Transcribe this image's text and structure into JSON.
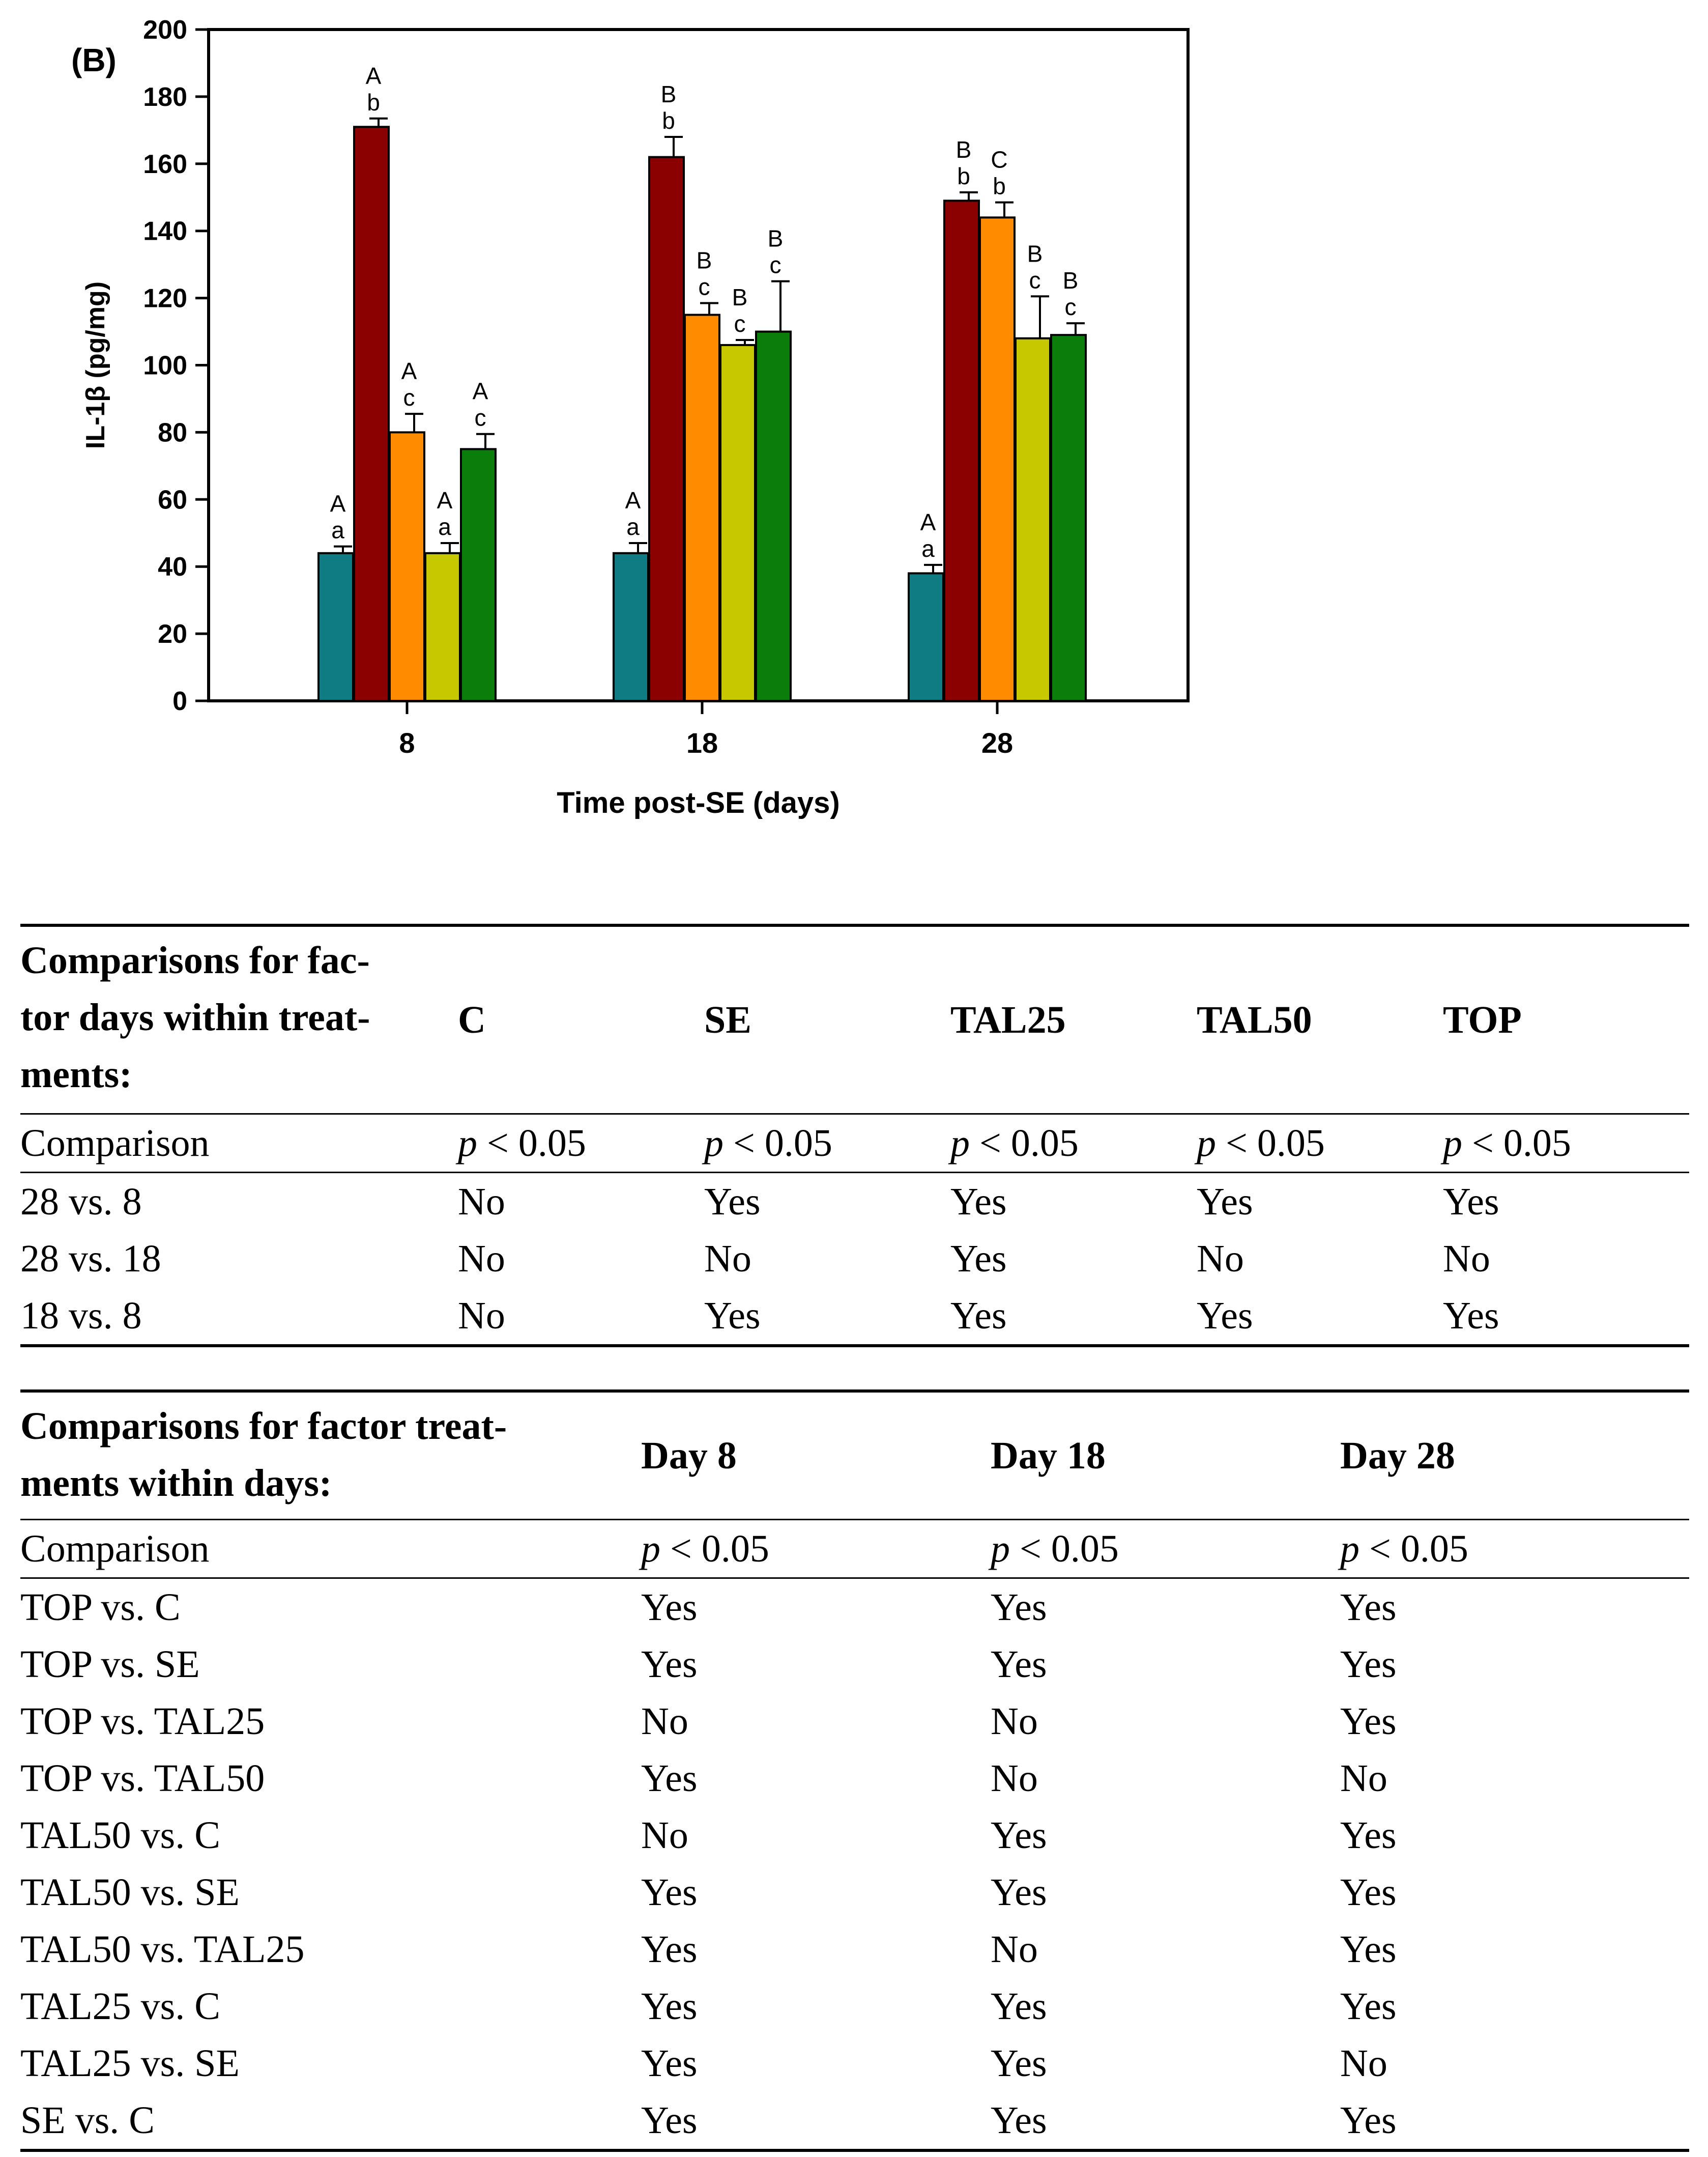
{
  "panel_label": "(B)",
  "chart_data": {
    "type": "bar",
    "ylabel": "IL-1β (pg/mg)",
    "xlabel": "Time post-SE (days)",
    "ylim": [
      0,
      200
    ],
    "yticks": [
      0,
      20,
      40,
      60,
      80,
      100,
      120,
      140,
      160,
      180,
      200
    ],
    "categories": [
      "8",
      "18",
      "28"
    ],
    "series": [
      {
        "color": "#0f7b82",
        "values": [
          44,
          44,
          38
        ],
        "errors": [
          2,
          3,
          2.5
        ],
        "letters_upper": [
          "A",
          "A",
          "A"
        ],
        "letters_lower": [
          "a",
          "a",
          "a"
        ]
      },
      {
        "color": "#8b0000",
        "values": [
          171,
          162,
          149
        ],
        "errors": [
          2.5,
          6,
          2.5
        ],
        "letters_upper": [
          "A",
          "B",
          "B"
        ],
        "letters_lower": [
          "b",
          "b",
          "b"
        ]
      },
      {
        "color": "#ff8c00",
        "values": [
          80,
          115,
          144
        ],
        "errors": [
          5.5,
          3.5,
          4.5
        ],
        "letters_upper": [
          "A",
          "B",
          "C"
        ],
        "letters_lower": [
          "c",
          "c",
          "b"
        ]
      },
      {
        "color": "#c8c800",
        "values": [
          44,
          106,
          108
        ],
        "errors": [
          3,
          1.5,
          12.5
        ],
        "letters_upper": [
          "A",
          "B",
          "B"
        ],
        "letters_lower": [
          "a",
          "c",
          "c"
        ]
      },
      {
        "color": "#0a7d0a",
        "values": [
          75,
          110,
          109
        ],
        "errors": [
          4.5,
          15,
          3.5
        ],
        "letters_upper": [
          "A",
          "B",
          "B"
        ],
        "letters_lower": [
          "c",
          "c",
          "c"
        ]
      }
    ]
  },
  "table_days": {
    "title_lines": [
      "Comparisons for fac-",
      "tor days within treat-",
      "ments:"
    ],
    "columns": [
      "C",
      "SE",
      "TAL25",
      "TAL50",
      "TOP"
    ],
    "subheader": {
      "label": "Comparison",
      "p_symbol": "p",
      "p_rest": " < 0.05"
    },
    "rows": [
      {
        "label": "28 vs. 8",
        "cells": [
          "No",
          "Yes",
          "Yes",
          "Yes",
          "Yes"
        ]
      },
      {
        "label": "28 vs. 18",
        "cells": [
          "No",
          "No",
          "Yes",
          "No",
          "No"
        ]
      },
      {
        "label": "18 vs. 8",
        "cells": [
          "No",
          "Yes",
          "Yes",
          "Yes",
          "Yes"
        ]
      }
    ]
  },
  "table_treatments": {
    "title_lines": [
      "Comparisons for factor treat-",
      "ments within days:"
    ],
    "columns": [
      "Day 8",
      "Day 18",
      "Day 28"
    ],
    "subheader": {
      "label": "Comparison",
      "p_symbol": "p",
      "p_rest": " < 0.05"
    },
    "rows": [
      {
        "label": "TOP vs. C",
        "cells": [
          "Yes",
          "Yes",
          "Yes"
        ]
      },
      {
        "label": "TOP vs. SE",
        "cells": [
          "Yes",
          "Yes",
          "Yes"
        ]
      },
      {
        "label": "TOP vs. TAL25",
        "cells": [
          "No",
          "No",
          "Yes"
        ]
      },
      {
        "label": "TOP vs. TAL50",
        "cells": [
          "Yes",
          "No",
          "No"
        ]
      },
      {
        "label": "TAL50 vs. C",
        "cells": [
          "No",
          "Yes",
          "Yes"
        ]
      },
      {
        "label": "TAL50 vs. SE",
        "cells": [
          "Yes",
          "Yes",
          "Yes"
        ]
      },
      {
        "label": "TAL50 vs. TAL25",
        "cells": [
          "Yes",
          "No",
          "Yes"
        ]
      },
      {
        "label": "TAL25 vs. C",
        "cells": [
          "Yes",
          "Yes",
          "Yes"
        ]
      },
      {
        "label": "TAL25 vs. SE",
        "cells": [
          "Yes",
          "Yes",
          "No"
        ]
      },
      {
        "label": "SE vs. C",
        "cells": [
          "Yes",
          "Yes",
          "Yes"
        ]
      }
    ]
  }
}
